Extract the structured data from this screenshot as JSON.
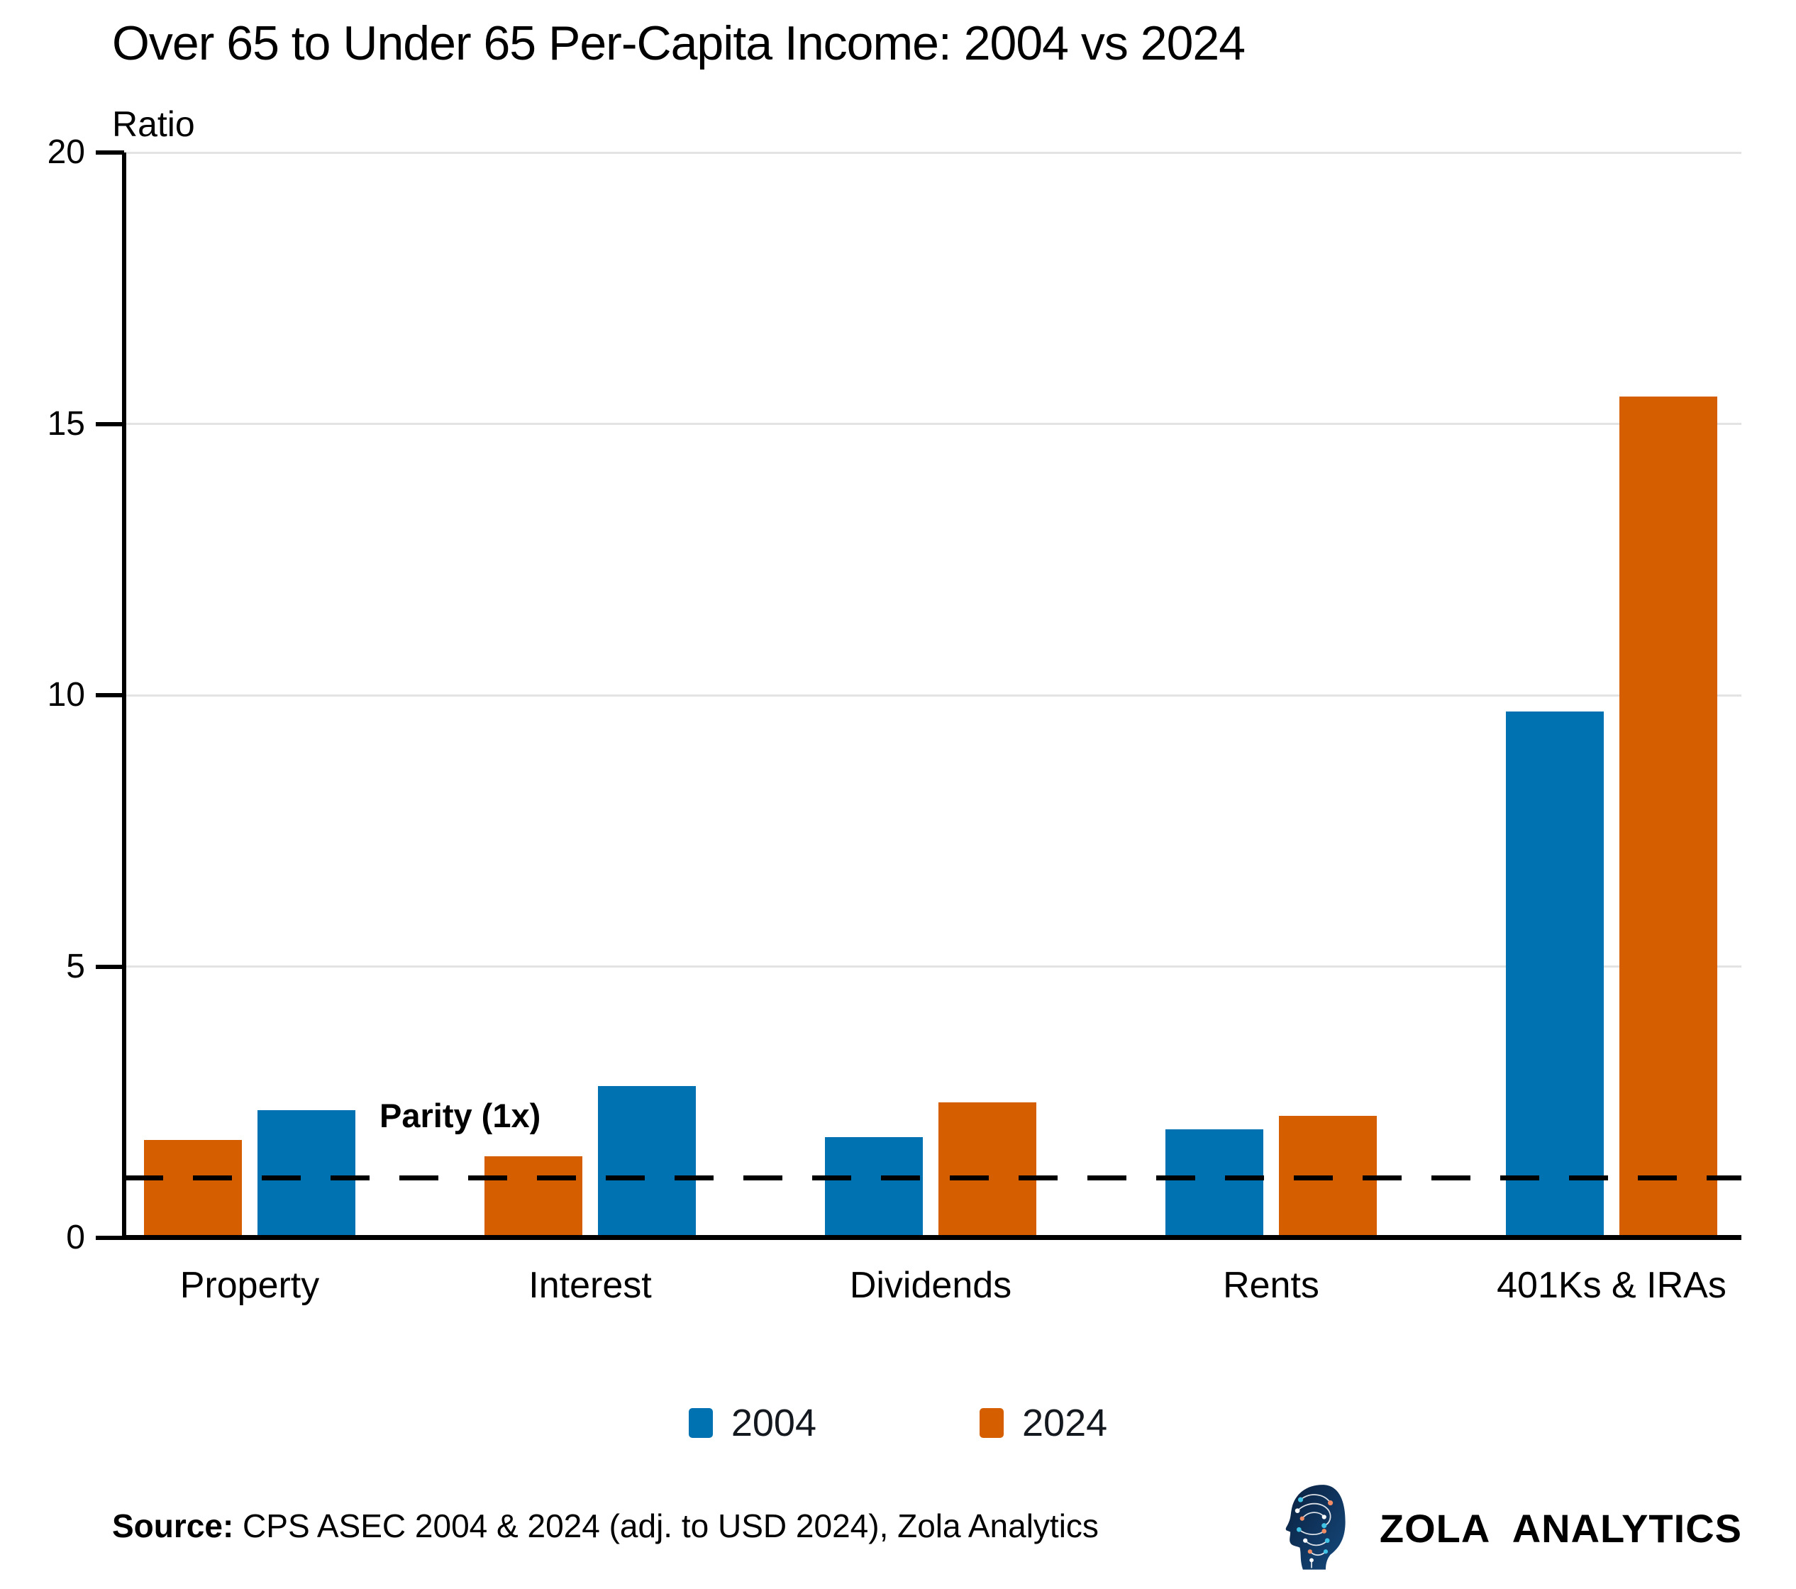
{
  "title": "Over 65 to Under 65 Per-Capita Income: 2004 vs 2024",
  "y_axis_label": "Ratio",
  "legend": [
    {
      "label": "2004",
      "color": "#0072B2"
    },
    {
      "label": "2024",
      "color": "#D55E00"
    }
  ],
  "source": {
    "prefix": "Source:",
    "text": " CPS ASEC 2004 & 2024 (adj. to USD 2024), Zola Analytics"
  },
  "branding": {
    "name": "ZOLA ANALYTICS",
    "logo": "circuit-head-icon"
  },
  "colors": {
    "series_2004": "#0072B2",
    "series_2024": "#D55E00",
    "gridline": "#e3e3e3",
    "axis": "#000000",
    "reference_line": "#000000",
    "logo_navy": "#0d2948",
    "logo_cyan": "#41c3e6",
    "logo_salmon": "#f28c64"
  },
  "chart_data": {
    "type": "bar",
    "title": "Over 65 to Under 65 Per-Capita Income: 2004 vs 2024",
    "xlabel": "",
    "ylabel": "Ratio",
    "ylim": [
      0,
      20
    ],
    "yticks": [
      0,
      5,
      10,
      15,
      20
    ],
    "grid": "horizontal",
    "legend_position": "bottom",
    "categories": [
      "Property",
      "Interest",
      "Dividends",
      "Rents",
      "401Ks & IRAs"
    ],
    "series": [
      {
        "name": "2004",
        "color": "#0072B2",
        "values": [
          2.35,
          2.8,
          1.85,
          2.0,
          9.7
        ]
      },
      {
        "name": "2024",
        "color": "#D55E00",
        "values": [
          1.8,
          1.5,
          2.5,
          2.25,
          15.5
        ]
      }
    ],
    "bar_order_per_category": [
      [
        "2024",
        "2004"
      ],
      [
        "2024",
        "2004"
      ],
      [
        "2004",
        "2024"
      ],
      [
        "2004",
        "2024"
      ],
      [
        "2004",
        "2024"
      ]
    ],
    "reference_line": {
      "value": 1.1,
      "style": "dashed",
      "label": "Parity (1x)"
    }
  }
}
